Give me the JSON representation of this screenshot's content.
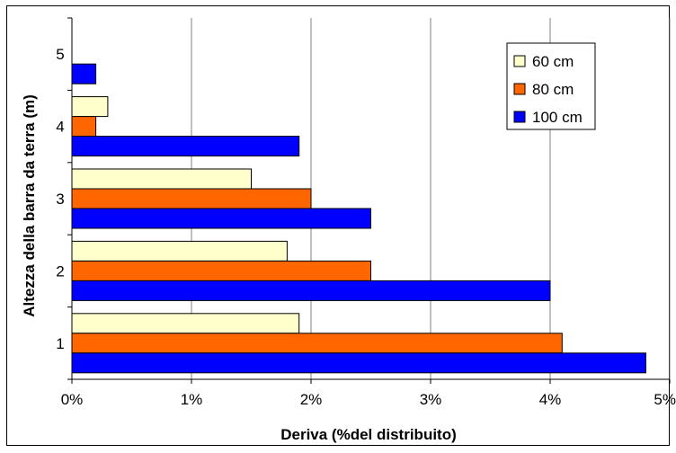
{
  "chart_data": {
    "type": "bar",
    "orientation": "horizontal",
    "title": "",
    "xlabel": "Deriva (%del distribuito)",
    "ylabel": "Altezza della barra da terra  (m)",
    "categories": [
      "1",
      "2",
      "3",
      "4",
      "5"
    ],
    "x_ticks": [
      "0%",
      "1%",
      "2%",
      "3%",
      "4%",
      "5%"
    ],
    "xlim": [
      0,
      5
    ],
    "grid": "vertical",
    "legend_position": "top-right",
    "series": [
      {
        "name": "60 cm",
        "color": "#ffffcc",
        "values": [
          1.9,
          1.8,
          1.5,
          0.3,
          0
        ]
      },
      {
        "name": "80 cm",
        "color": "#ff6600",
        "values": [
          4.1,
          2.5,
          2.0,
          0.2,
          0
        ]
      },
      {
        "name": "100 cm",
        "color": "#0000ff",
        "values": [
          4.8,
          4.0,
          2.5,
          1.9,
          0.2
        ]
      }
    ]
  }
}
